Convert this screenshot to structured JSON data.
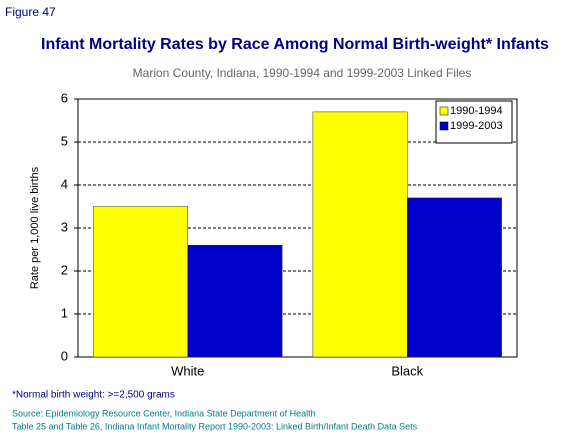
{
  "figure_label": "Figure 47",
  "chart_data": {
    "type": "bar",
    "title": "Infant Mortality Rates by Race Among Normal Birth-weight* Infants",
    "subtitle": "Marion County, Indiana, 1990-1994 and 1999-2003 Linked Files",
    "y_label": "Rate per 1,000 live births",
    "categories": [
      "White",
      "Black"
    ],
    "series": [
      {
        "name": "1990-1994",
        "color": "#ffff00",
        "values": [
          3.5,
          5.7
        ]
      },
      {
        "name": "1999-2003",
        "color": "#0000cc",
        "values": [
          2.6,
          3.7
        ]
      }
    ],
    "ylim": [
      0,
      6
    ],
    "yticks": [
      0,
      1,
      2,
      3,
      4,
      5,
      6
    ],
    "grid": true,
    "legend": "upper-right"
  },
  "footnote": "*Normal birth weight: >=2,500 grams",
  "source": [
    "Source: Epidemiology Resource Center, Indiana State Department of Health",
    "Table 25 and Table 26, Indiana Infant Mortality Report 1990-2003: Linked Birth/Infant Death Data Sets"
  ]
}
